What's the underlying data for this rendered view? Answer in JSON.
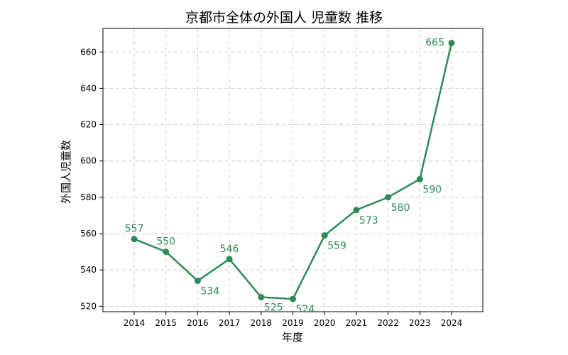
{
  "chart_data": {
    "type": "line",
    "title": "京都市全体の外国人 児童数 推移",
    "xlabel": "年度",
    "ylabel": "外国人児童数",
    "categories": [
      "2014",
      "2015",
      "2016",
      "2017",
      "2018",
      "2019",
      "2020",
      "2021",
      "2022",
      "2023",
      "2024"
    ],
    "series": [
      {
        "values": [
          557,
          550,
          534,
          546,
          525,
          524,
          559,
          573,
          580,
          590,
          665
        ]
      }
    ],
    "data_labels": [
      "557",
      "550",
      "534",
      "546",
      "525",
      "524",
      "559",
      "573",
      "580",
      "590",
      "665"
    ],
    "label_positions": [
      "above",
      "above",
      "below",
      "above",
      "below",
      "below",
      "below",
      "below",
      "below",
      "below",
      "left"
    ],
    "yticks": [
      "520",
      "540",
      "560",
      "580",
      "600",
      "620",
      "640",
      "660"
    ],
    "ylim": [
      517,
      673
    ],
    "grid": true,
    "color": "#2e8b57"
  }
}
